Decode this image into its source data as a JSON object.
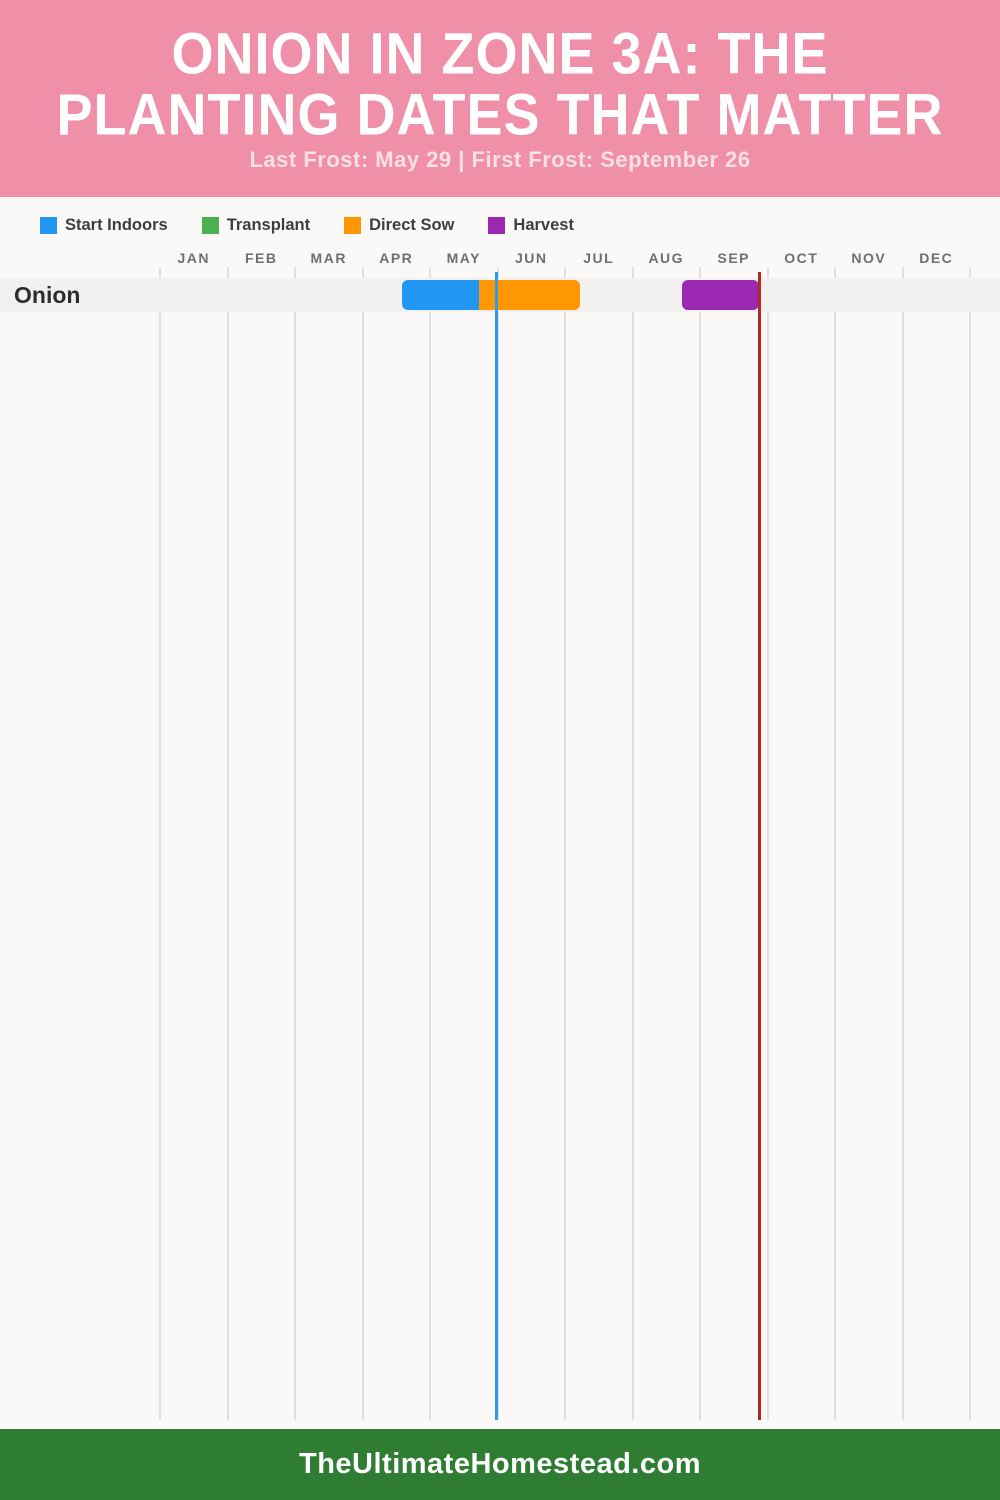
{
  "header": {
    "title_line1": "ONION IN ZONE 3A: THE",
    "title_line2": "PLANTING DATES THAT MATTER",
    "subtitle": "Last Frost: May 29 | First Frost: September 26",
    "bg_color": "#F08FA8"
  },
  "legend": {
    "items": [
      {
        "label": "Start Indoors",
        "color": "#2196F3"
      },
      {
        "label": "Transplant",
        "color": "#4CAF50"
      },
      {
        "label": "Direct Sow",
        "color": "#FF9800"
      },
      {
        "label": "Harvest",
        "color": "#9C27B0"
      }
    ]
  },
  "chart_data": {
    "type": "bar",
    "subtype": "gantt-timeline",
    "title": "Onion in Zone 3A: The Planting Dates That Matter",
    "months": [
      "JAN",
      "FEB",
      "MAR",
      "APR",
      "MAY",
      "JUN",
      "JUL",
      "AUG",
      "SEP",
      "OCT",
      "NOV",
      "DEC"
    ],
    "xlim": [
      0,
      12
    ],
    "grid": true,
    "rows": [
      {
        "label": "Onion",
        "bars": [
          {
            "name": "Start Indoors",
            "color": "#2196F3",
            "start_month": 3.59,
            "end_month": 4.73,
            "start_date": "Apr 18",
            "end_date": "May 23"
          },
          {
            "name": "Direct Sow",
            "color": "#FF9800",
            "start_month": 4.73,
            "end_month": 6.22,
            "start_date": "May 23",
            "end_date": "Jul 7"
          },
          {
            "name": "Harvest",
            "color": "#9C27B0",
            "start_month": 7.73,
            "end_month": 8.87,
            "start_date": "Aug 23",
            "end_date": "Sep 26"
          }
        ]
      }
    ],
    "markers": [
      {
        "name": "Last Frost",
        "date": "May 29",
        "month_position": 4.98,
        "color": "#2E9BF0"
      },
      {
        "name": "First Frost",
        "date": "September 26",
        "month_position": 8.88,
        "color": "#B12922"
      }
    ],
    "colors": {
      "band": "#F2F1EF",
      "gridline": "#E2E0DD",
      "month_label": "#6F6F6F",
      "background": "#FAF9F7"
    }
  },
  "footer": {
    "text": "TheUltimateHomestead.com",
    "bg_color": "#2E7D32"
  }
}
